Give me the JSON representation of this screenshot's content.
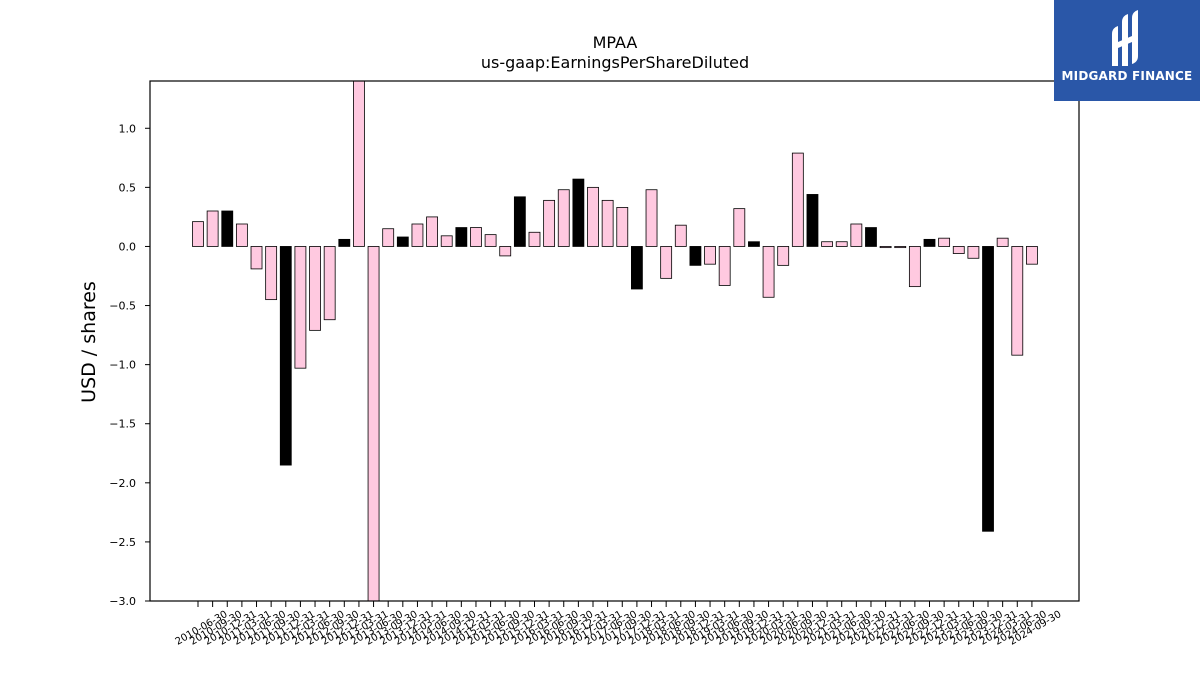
{
  "brand": {
    "name": "MIDGARD FINANCE",
    "bg_color": "#2a57a8"
  },
  "chart_data": {
    "type": "bar",
    "title": "MPAA",
    "subtitle": "us-gaap:EarningsPerShareDiluted",
    "xlabel": "",
    "ylabel": "USD / shares",
    "ylim": [
      -3.0,
      1.4
    ],
    "yticks": [
      1.0,
      0.5,
      0.0,
      -0.5,
      -1.0,
      -1.5,
      -2.0,
      -2.5,
      -3.0
    ],
    "ytick_labels": [
      "1.0",
      "0.5",
      "0.0",
      "−0.5",
      "−1.0",
      "−1.5",
      "−2.0",
      "−2.5",
      "−3.0"
    ],
    "grid": false,
    "colors": {
      "quarterly": "#ffc9e0",
      "annual": "#000000",
      "edge": "#000000"
    },
    "categories": [
      "2010-06-30",
      "2010-09-30",
      "2010-12-31",
      "2011-03-31",
      "2011-06-30",
      "2011-09-30",
      "2011-12-31",
      "2012-03-31",
      "2012-06-30",
      "2012-09-30",
      "2012-12-31",
      "2013-03-31",
      "2013-06-30",
      "2013-09-30",
      "2013-12-31",
      "2014-03-31",
      "2014-06-30",
      "2014-09-30",
      "2014-12-31",
      "2015-03-31",
      "2015-06-30",
      "2015-09-30",
      "2015-12-31",
      "2016-03-31",
      "2016-06-30",
      "2016-09-30",
      "2016-12-31",
      "2017-03-31",
      "2017-06-30",
      "2017-09-30",
      "2017-12-31",
      "2018-03-31",
      "2018-06-30",
      "2018-09-30",
      "2018-12-31",
      "2019-03-31",
      "2019-06-30",
      "2019-09-30",
      "2019-12-31",
      "2020-03-31",
      "2020-06-30",
      "2020-09-30",
      "2020-12-31",
      "2021-03-31",
      "2021-06-30",
      "2021-09-30",
      "2021-12-31",
      "2022-03-31",
      "2022-06-30",
      "2022-09-30",
      "2022-12-31",
      "2023-03-31",
      "2023-06-30",
      "2023-09-30",
      "2023-12-31",
      "2024-03-31",
      "2024-06-30",
      "2024-09-30"
    ],
    "values": [
      0.21,
      0.3,
      0.3,
      0.19,
      -0.19,
      -0.45,
      -1.85,
      -1.03,
      -0.71,
      -0.62,
      0.06,
      1.4,
      -3.05,
      0.15,
      0.08,
      0.19,
      0.25,
      0.09,
      0.16,
      0.16,
      0.1,
      -0.08,
      0.42,
      0.12,
      0.39,
      0.48,
      0.57,
      0.5,
      0.39,
      0.33,
      -0.36,
      0.48,
      -0.27,
      0.18,
      -0.16,
      -0.15,
      -0.33,
      0.32,
      0.04,
      -0.43,
      -0.16,
      0.79,
      0.44,
      0.04,
      0.04,
      0.19,
      0.16,
      -0.01,
      -0.01,
      -0.34,
      0.06,
      0.07,
      -0.06,
      -0.1,
      -2.41,
      0.07,
      -0.92,
      -0.15
    ],
    "is_annual": [
      false,
      false,
      true,
      false,
      false,
      false,
      true,
      false,
      false,
      false,
      true,
      false,
      false,
      false,
      true,
      false,
      false,
      false,
      true,
      false,
      false,
      false,
      true,
      false,
      false,
      false,
      true,
      false,
      false,
      false,
      true,
      false,
      false,
      false,
      true,
      false,
      false,
      false,
      true,
      false,
      false,
      false,
      true,
      false,
      false,
      false,
      true,
      false,
      false,
      false,
      true,
      false,
      false,
      false,
      true,
      false,
      false,
      false
    ]
  }
}
